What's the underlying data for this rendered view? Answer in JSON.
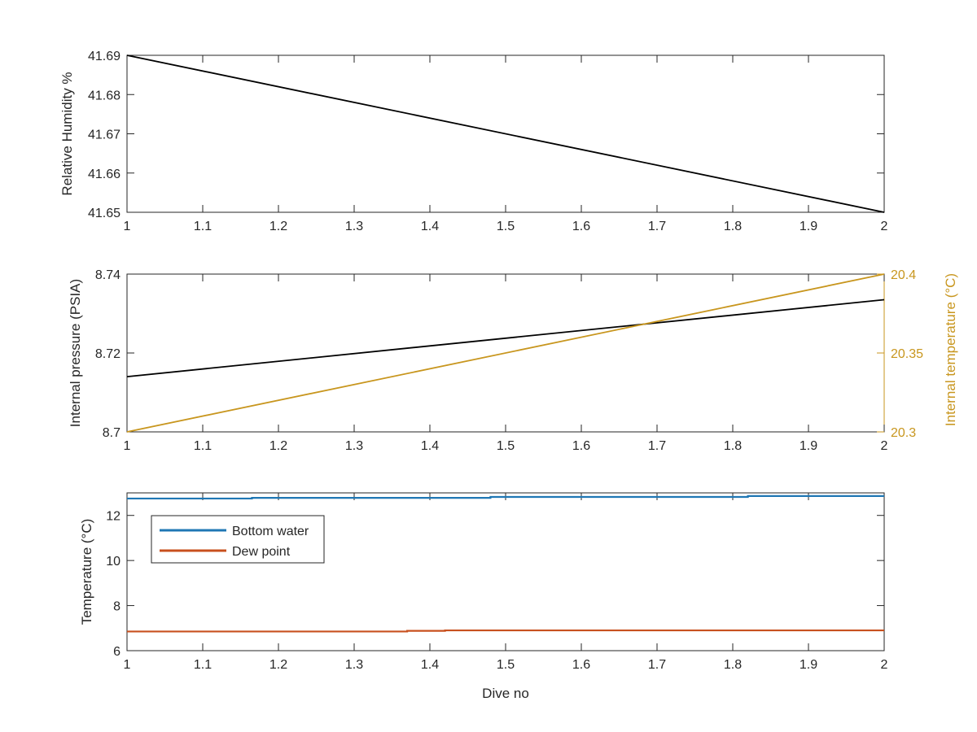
{
  "chart_data": [
    {
      "type": "line",
      "title": "",
      "xlabel": "",
      "ylabel": "Relative Humidity %",
      "xlim": [
        1,
        2
      ],
      "ylim": [
        41.65,
        41.69
      ],
      "xticks": [
        "1",
        "1.1",
        "1.2",
        "1.3",
        "1.4",
        "1.5",
        "1.6",
        "1.7",
        "1.8",
        "1.9",
        "2"
      ],
      "yticks": [
        "41.65",
        "41.66",
        "41.67",
        "41.68",
        "41.69"
      ],
      "grid": false,
      "series": [
        {
          "color": "#000000",
          "x": [
            1,
            2
          ],
          "y": [
            41.69,
            41.65
          ]
        }
      ]
    },
    {
      "type": "line",
      "title": "",
      "xlabel": "",
      "ylabel": "Internal pressure (PSIA)",
      "ylabel_right": "Internal temperature (°C)",
      "xlim": [
        1,
        2
      ],
      "ylim": [
        8.7,
        8.74
      ],
      "ylim_right": [
        20.3,
        20.4
      ],
      "xticks": [
        "1",
        "1.1",
        "1.2",
        "1.3",
        "1.4",
        "1.5",
        "1.6",
        "1.7",
        "1.8",
        "1.9",
        "2"
      ],
      "yticks": [
        "8.7",
        "8.72",
        "8.74"
      ],
      "yticks_right": [
        "20.3",
        "20.35",
        "20.4"
      ],
      "right_axis_color": "#c8961e",
      "grid": false,
      "series": [
        {
          "color": "#000000",
          "axis": "left",
          "x": [
            1,
            2
          ],
          "y": [
            8.714,
            8.7335
          ]
        },
        {
          "color": "#c8961e",
          "axis": "right",
          "x": [
            1,
            2
          ],
          "y": [
            20.3,
            20.4
          ]
        }
      ]
    },
    {
      "type": "line",
      "title": "",
      "xlabel": "Dive no",
      "ylabel": "Temperature (°C)",
      "xlim": [
        1,
        2
      ],
      "ylim": [
        6,
        13
      ],
      "xticks": [
        "1",
        "1.1",
        "1.2",
        "1.3",
        "1.4",
        "1.5",
        "1.6",
        "1.7",
        "1.8",
        "1.9",
        "2"
      ],
      "yticks": [
        "6",
        "8",
        "10",
        "12"
      ],
      "grid": false,
      "legend_position": "top-left",
      "series": [
        {
          "name": "Bottom water",
          "color": "#1f77b4",
          "x": [
            1,
            1.165,
            1.165,
            1.48,
            1.48,
            1.82,
            1.82,
            2
          ],
          "y": [
            12.75,
            12.75,
            12.78,
            12.78,
            12.82,
            12.82,
            12.86,
            12.86
          ]
        },
        {
          "name": "Dew point",
          "color": "#c8501e",
          "x": [
            1,
            1.37,
            1.37,
            1.42,
            1.42,
            2
          ],
          "y": [
            6.85,
            6.85,
            6.88,
            6.88,
            6.9,
            6.9
          ]
        }
      ]
    }
  ]
}
